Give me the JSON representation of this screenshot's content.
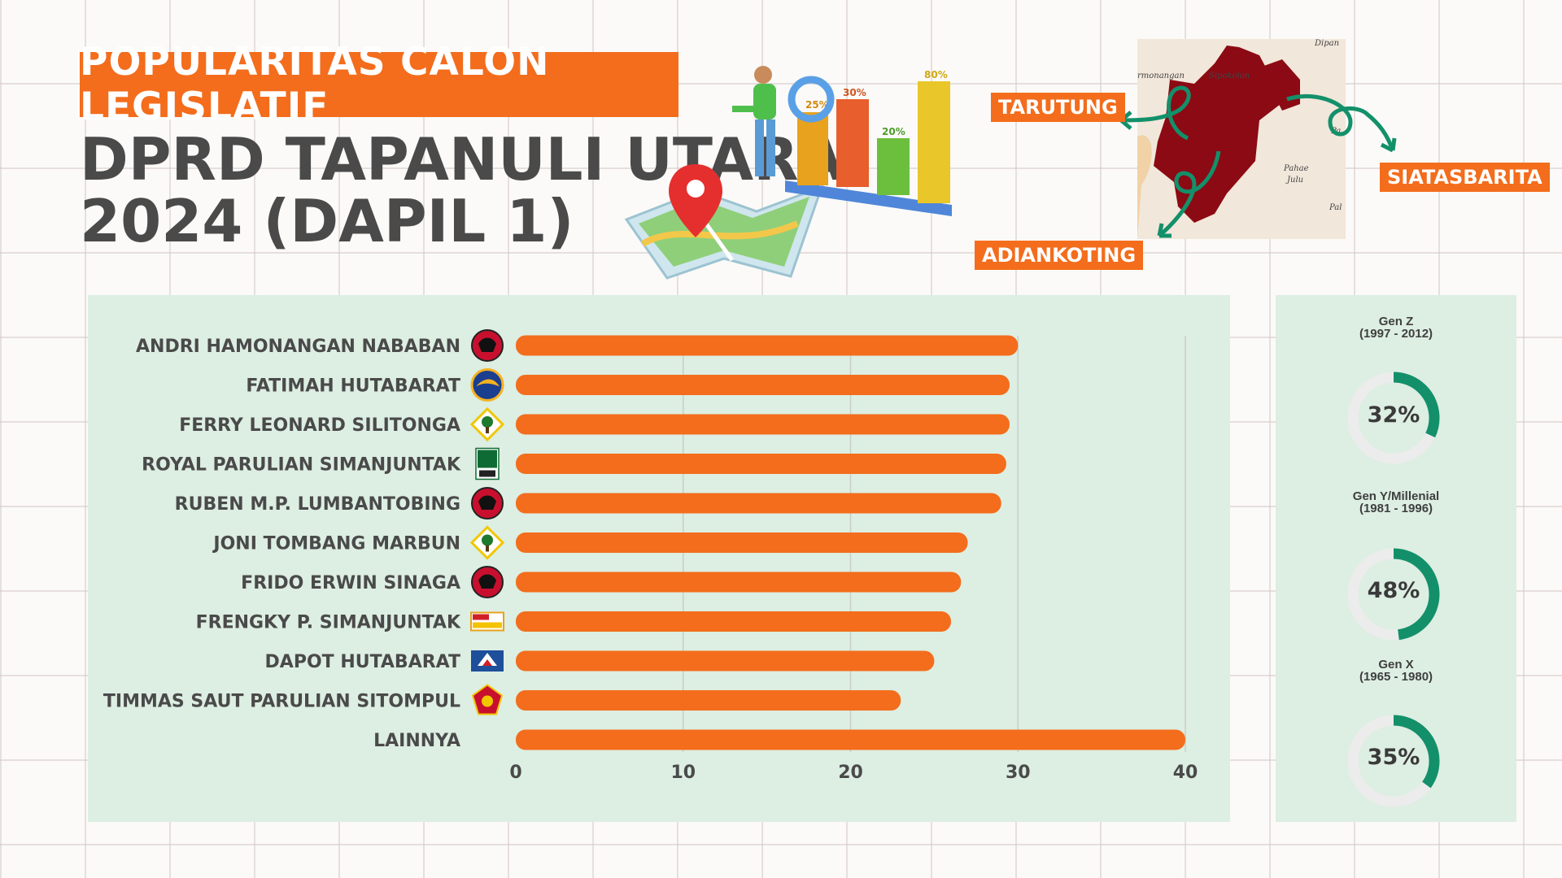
{
  "header": {
    "badge": "POPULARITAS CALON LEGISLATIF",
    "title_line1": "DPRD TAPANULI UTARA",
    "title_line2": "2024 (DAPIL 1)"
  },
  "illustration": {
    "bar_labels": [
      "25%",
      "30%",
      "20%",
      "80%"
    ]
  },
  "map": {
    "places": [
      "rmonangan",
      "Sipokolon",
      "Pahae",
      "Julu",
      "Pa",
      "Pal",
      "Dipan"
    ],
    "tags": {
      "tarutung": "TARUTUNG",
      "siatasbarita": "SIATASBARITA",
      "adiankoting": "ADIANKOTING"
    }
  },
  "colors": {
    "accent": "#f36d1c",
    "panel": "#ddeee2",
    "donut_fill": "#13906a",
    "donut_track": "#ececec",
    "map_fill": "#8b0a14"
  },
  "chart_data": {
    "type": "bar",
    "orientation": "horizontal",
    "categories": [
      "ANDRI HAMONANGAN NABABAN",
      "FATIMAH HUTABARAT",
      "FERRY LEONARD SILITONGA",
      "ROYAL PARULIAN SIMANJUNTAK",
      "RUBEN M.P. LUMBANTOBING",
      "JONI TOMBANG MARBUN",
      "FRIDO ERWIN SINAGA",
      "FRENGKY P. SIMANJUNTAK",
      "DAPOT HUTABARAT",
      "TIMMAS SAUT PARULIAN SITOMPUL",
      "LAINNYA"
    ],
    "values": [
      30,
      29.5,
      29.5,
      29.3,
      29,
      27,
      26.6,
      26,
      25,
      23,
      40
    ],
    "party_icons": [
      "pdip-icon",
      "nasdem-icon",
      "golkar-icon",
      "pkb-icon",
      "pdip-icon",
      "golkar-icon",
      "pdip-icon",
      "hanura-icon",
      "demokrat-icon",
      "gerindra-icon",
      ""
    ],
    "xlim": [
      0,
      40
    ],
    "xticks": [
      0,
      10,
      20,
      30,
      40
    ],
    "grid": true,
    "bar_color": "#f36d1c"
  },
  "generations": [
    {
      "name": "Gen Z",
      "range": "(1997 - 2012)",
      "value": 32,
      "label": "32%"
    },
    {
      "name": "Gen Y/Millenial",
      "range": "(1981 - 1996)",
      "value": 48,
      "label": "48%"
    },
    {
      "name": "Gen X",
      "range": "(1965 - 1980)",
      "value": 35,
      "label": "35%"
    }
  ]
}
